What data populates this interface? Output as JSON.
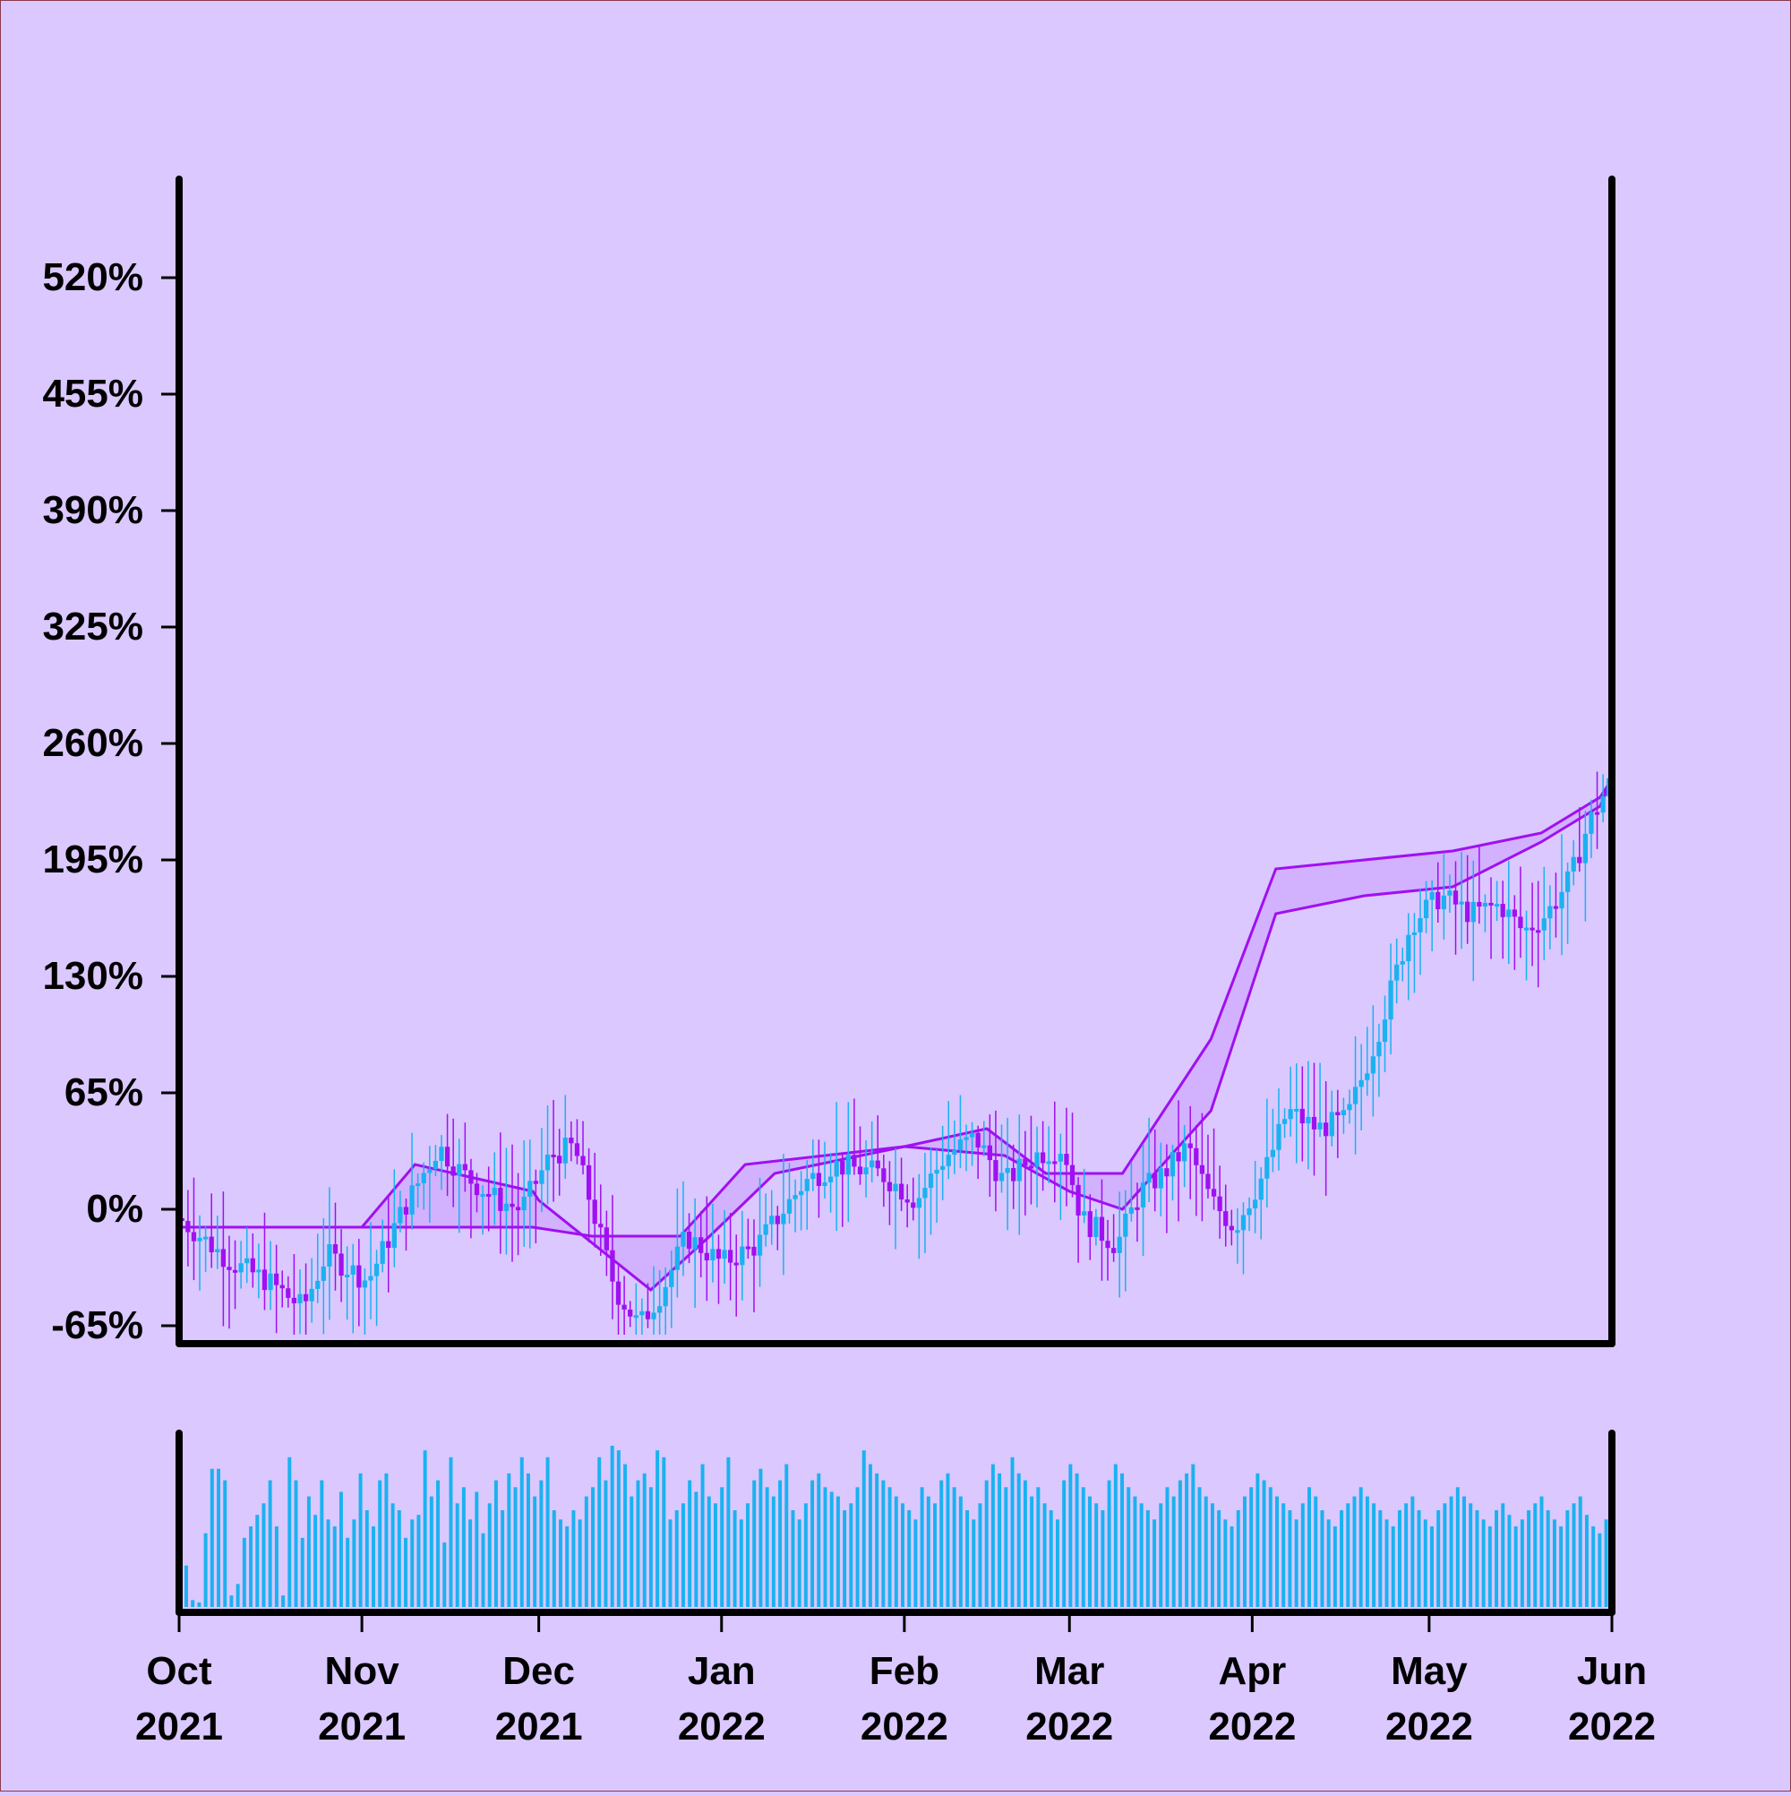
{
  "colors": {
    "background": "#dac8ff",
    "up_candle": "#1ab2f0",
    "down_candle": "#a010f0",
    "cloud_line": "#a010f0",
    "cloud_fill": "#cfaaff",
    "volume_bar": "#1ab2f0",
    "axis": "#000000"
  },
  "chart_data": {
    "type": "candlestick",
    "title": "",
    "xlabel": "",
    "ylabel": "",
    "ylim": [
      -65,
      585
    ],
    "y_ticks": [
      "520%",
      "455%",
      "390%",
      "325%",
      "260%",
      "195%",
      "130%",
      "65%",
      "0%",
      "-65%"
    ],
    "y_tick_values": [
      520,
      455,
      390,
      325,
      260,
      195,
      130,
      65,
      0,
      -65
    ],
    "x_range": [
      "2021-10-01",
      "2022-06-01"
    ],
    "x_ticks": [
      {
        "date": "2021-10-01",
        "month": "Oct",
        "year": "2021"
      },
      {
        "date": "2021-11-01",
        "month": "Nov",
        "year": "2021"
      },
      {
        "date": "2021-12-01",
        "month": "Dec",
        "year": "2021"
      },
      {
        "date": "2022-01-01",
        "month": "Jan",
        "year": "2022"
      },
      {
        "date": "2022-02-01",
        "month": "Feb",
        "year": "2022"
      },
      {
        "date": "2022-03-01",
        "month": "Mar",
        "year": "2022"
      },
      {
        "date": "2022-04-01",
        "month": "Apr",
        "year": "2022"
      },
      {
        "date": "2022-05-01",
        "month": "May",
        "year": "2022"
      },
      {
        "date": "2022-06-01",
        "month": "Jun",
        "year": "2022"
      }
    ],
    "close_path": {
      "dates": [
        "2021-10-01",
        "2021-10-10",
        "2021-10-16",
        "2021-10-22",
        "2021-10-26",
        "2021-11-02",
        "2021-11-08",
        "2021-11-14",
        "2021-11-18",
        "2021-11-24",
        "2021-11-28",
        "2021-12-03",
        "2021-12-07",
        "2021-12-11",
        "2021-12-14",
        "2021-12-18",
        "2021-12-22",
        "2021-12-26",
        "2022-01-01",
        "2022-01-07",
        "2022-01-15",
        "2022-01-20",
        "2022-01-28",
        "2022-02-03",
        "2022-02-08",
        "2022-02-13",
        "2022-02-18",
        "2022-02-23",
        "2022-02-28",
        "2022-03-03",
        "2022-03-09",
        "2022-03-13",
        "2022-03-17",
        "2022-03-21",
        "2022-03-25",
        "2022-03-29",
        "2022-04-03",
        "2022-04-07",
        "2022-04-12",
        "2022-04-17",
        "2022-04-22",
        "2022-04-28",
        "2022-05-03",
        "2022-05-08",
        "2022-05-13",
        "2022-05-17",
        "2022-05-21",
        "2022-05-25",
        "2022-05-28",
        "2022-06-01"
      ],
      "values": [
        -5,
        -30,
        -40,
        -55,
        -25,
        -40,
        0,
        35,
        20,
        5,
        0,
        30,
        35,
        -10,
        -45,
        -65,
        -45,
        -15,
        -30,
        -20,
        15,
        25,
        20,
        5,
        30,
        40,
        15,
        30,
        35,
        -5,
        -20,
        10,
        20,
        35,
        5,
        -10,
        20,
        55,
        45,
        50,
        95,
        160,
        175,
        165,
        170,
        155,
        165,
        185,
        215,
        240
      ]
    },
    "series": [
      {
        "name": "",
        "kind": "cloud_line_1",
        "dates": [
          "2021-10-01",
          "2021-11-01",
          "2021-11-10",
          "2021-11-30",
          "2021-12-01",
          "2021-12-20",
          "2021-12-30",
          "2022-01-10",
          "2022-02-01",
          "2022-02-15",
          "2022-02-25",
          "2022-03-10",
          "2022-03-25",
          "2022-04-05",
          "2022-04-20",
          "2022-05-05",
          "2022-05-20",
          "2022-05-30",
          "2022-06-01"
        ],
        "values": [
          -10,
          -10,
          25,
          10,
          5,
          -45,
          -15,
          20,
          35,
          45,
          20,
          20,
          95,
          190,
          195,
          200,
          210,
          230,
          240
        ]
      },
      {
        "name": "",
        "kind": "cloud_line_2",
        "dates": [
          "2021-10-01",
          "2021-11-01",
          "2021-11-08",
          "2021-11-30",
          "2021-12-10",
          "2021-12-25",
          "2022-01-05",
          "2022-02-01",
          "2022-02-18",
          "2022-03-01",
          "2022-03-10",
          "2022-03-25",
          "2022-04-05",
          "2022-04-20",
          "2022-05-05",
          "2022-05-20",
          "2022-05-30",
          "2022-06-01"
        ],
        "values": [
          -10,
          -10,
          -10,
          -10,
          -15,
          -15,
          25,
          35,
          30,
          10,
          0,
          55,
          165,
          175,
          180,
          205,
          225,
          240
        ]
      }
    ],
    "volume": {
      "values": [
        18,
        3,
        2,
        32,
        60,
        60,
        55,
        5,
        10,
        30,
        35,
        40,
        45,
        55,
        35,
        5,
        65,
        55,
        30,
        48,
        40,
        55,
        38,
        35,
        50,
        30,
        38,
        58,
        42,
        35,
        55,
        58,
        45,
        42,
        30,
        38,
        40,
        68,
        48,
        55,
        28,
        65,
        45,
        52,
        38,
        50,
        32,
        45,
        55,
        42,
        58,
        52,
        65,
        58,
        48,
        55,
        65,
        42,
        38,
        35,
        42,
        38,
        48,
        52,
        65,
        55,
        70,
        68,
        62,
        48,
        55,
        58,
        52,
        68,
        65,
        38,
        42,
        45,
        55,
        50,
        62,
        48,
        45,
        52,
        65,
        42,
        38,
        45,
        55,
        60,
        52,
        48,
        55,
        62,
        42,
        38,
        45,
        55,
        58,
        52,
        50,
        48,
        42,
        45,
        52,
        68,
        62,
        58,
        55,
        52,
        48,
        45,
        42,
        38,
        52,
        48,
        45,
        55,
        58,
        52,
        48,
        42,
        38,
        45,
        55,
        62,
        58,
        52,
        65,
        58,
        55,
        48,
        52,
        45,
        42,
        38,
        55,
        62,
        58,
        52,
        48,
        45,
        42,
        55,
        62,
        58,
        52,
        48,
        45,
        42,
        38,
        45,
        52,
        48,
        55,
        58,
        62,
        52,
        48,
        45,
        42,
        38,
        35,
        42,
        48,
        52,
        58,
        55,
        52,
        48,
        45,
        42,
        38,
        45,
        52,
        48,
        42,
        38,
        35,
        42,
        45,
        48,
        52,
        48,
        45,
        42,
        38,
        35,
        42,
        45,
        48,
        42,
        38,
        35,
        42,
        45,
        48,
        52,
        48,
        45,
        42,
        38,
        35,
        42,
        45,
        40,
        35,
        38,
        42,
        45,
        48,
        42,
        38,
        35,
        42,
        45,
        48,
        40,
        35,
        32,
        38,
        42
      ]
    }
  }
}
